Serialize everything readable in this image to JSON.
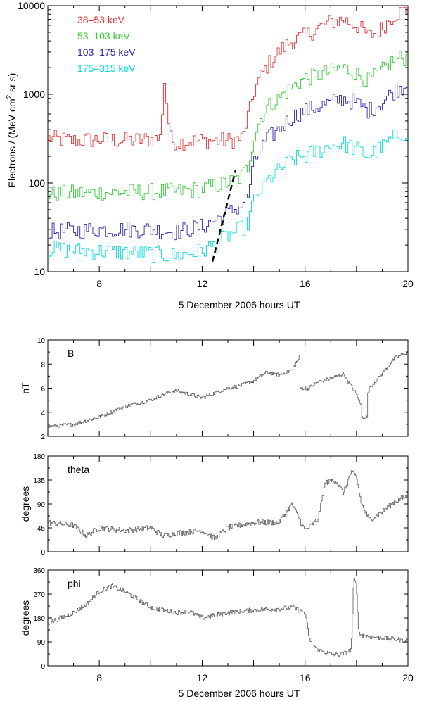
{
  "chart_data": [
    {
      "type": "line",
      "step": true,
      "scale": "log",
      "xlabel": "5 December 2006    hours UT",
      "ylabel_main": "Electrons / (MeV cm",
      "ylabel_sup": "2",
      "ylabel_tail": " sr s)",
      "xlim": [
        6,
        20
      ],
      "ylim": [
        10,
        10000
      ],
      "xticks": [
        8,
        12,
        16,
        20
      ],
      "xtick_labels": [
        "8",
        "12",
        "16",
        "20"
      ],
      "yticks": [
        10,
        100,
        1000,
        10000
      ],
      "ytick_labels": [
        "10",
        "100",
        "1000",
        "10000"
      ],
      "annotation": "dashed velocity-dispersion line from (12.4 h, 13) to (13.3 h, 140)",
      "dash_line": [
        [
          12.4,
          13
        ],
        [
          13.3,
          140
        ]
      ],
      "series": [
        {
          "name": "38–53 keV",
          "color": "#e83030",
          "anchors": [
            [
              6,
              320
            ],
            [
              7,
              300
            ],
            [
              8,
              310
            ],
            [
              9,
              300
            ],
            [
              10,
              310
            ],
            [
              10.4,
              320
            ],
            [
              10.5,
              900
            ],
            [
              10.55,
              1500
            ],
            [
              10.65,
              600
            ],
            [
              10.8,
              300
            ],
            [
              11,
              290
            ],
            [
              12,
              300
            ],
            [
              13,
              300
            ],
            [
              13.6,
              320
            ],
            [
              13.9,
              700
            ],
            [
              14,
              1000
            ],
            [
              14.5,
              2000
            ],
            [
              15,
              3000
            ],
            [
              15.5,
              4000
            ],
            [
              16,
              4500
            ],
            [
              16.5,
              5500
            ],
            [
              17,
              6500
            ],
            [
              17.5,
              7000
            ],
            [
              18,
              6000
            ],
            [
              18.5,
              4500
            ],
            [
              19,
              5500
            ],
            [
              19.5,
              8000
            ],
            [
              20,
              9000
            ]
          ],
          "spike_at": [
            10.5,
            10.6
          ]
        },
        {
          "name": "53–103 keV",
          "color": "#33cc33",
          "anchors": [
            [
              6,
              75
            ],
            [
              8,
              78
            ],
            [
              10,
              80
            ],
            [
              11,
              80
            ],
            [
              12,
              85
            ],
            [
              13,
              100
            ],
            [
              13.5,
              115
            ],
            [
              13.8,
              150
            ],
            [
              14,
              300
            ],
            [
              14.5,
              700
            ],
            [
              15,
              900
            ],
            [
              15.5,
              1200
            ],
            [
              16,
              1500
            ],
            [
              17,
              1800
            ],
            [
              17.5,
              2000
            ],
            [
              18,
              1700
            ],
            [
              18.5,
              1400
            ],
            [
              19,
              1800
            ],
            [
              19.5,
              2500
            ],
            [
              20,
              2600
            ]
          ]
        },
        {
          "name": "103–175 keV",
          "color": "#2828b0",
          "anchors": [
            [
              6,
              28
            ],
            [
              8,
              30
            ],
            [
              10,
              30
            ],
            [
              11,
              28
            ],
            [
              12,
              32
            ],
            [
              12.5,
              38
            ],
            [
              13,
              45
            ],
            [
              13.5,
              55
            ],
            [
              13.8,
              70
            ],
            [
              14,
              150
            ],
            [
              14.5,
              300
            ],
            [
              15,
              400
            ],
            [
              15.5,
              550
            ],
            [
              16,
              650
            ],
            [
              17,
              800
            ],
            [
              17.5,
              900
            ],
            [
              18,
              800
            ],
            [
              18.5,
              650
            ],
            [
              19,
              800
            ],
            [
              19.5,
              1100
            ],
            [
              20,
              1300
            ]
          ]
        },
        {
          "name": "175–315 keV",
          "color": "#00dddd",
          "anchors": [
            [
              6,
              18
            ],
            [
              8,
              17
            ],
            [
              10,
              16
            ],
            [
              11,
              15
            ],
            [
              12,
              17
            ],
            [
              12.5,
              20
            ],
            [
              13,
              25
            ],
            [
              13.5,
              30
            ],
            [
              13.8,
              35
            ],
            [
              14,
              60
            ],
            [
              14.5,
              100
            ],
            [
              15,
              140
            ],
            [
              15.5,
              180
            ],
            [
              16,
              200
            ],
            [
              17,
              260
            ],
            [
              17.5,
              280
            ],
            [
              18,
              240
            ],
            [
              18.5,
              200
            ],
            [
              19,
              250
            ],
            [
              19.5,
              330
            ],
            [
              20,
              380
            ]
          ]
        }
      ]
    },
    {
      "type": "line",
      "label": "B",
      "ylabel": "nT",
      "xlim": [
        6,
        20
      ],
      "ylim": [
        2,
        10
      ],
      "yticks": [
        2,
        4,
        6,
        8,
        10
      ],
      "ytick_labels": [
        "2",
        "4",
        "6",
        "8",
        "10"
      ],
      "anchors": [
        [
          6,
          2.8
        ],
        [
          7,
          3.0
        ],
        [
          8,
          3.6
        ],
        [
          9,
          4.5
        ],
        [
          10,
          5.0
        ],
        [
          10.5,
          5.5
        ],
        [
          11,
          5.8
        ],
        [
          12,
          5.2
        ],
        [
          12.5,
          5.6
        ],
        [
          13,
          6.0
        ],
        [
          13.5,
          6.2
        ],
        [
          14,
          6.6
        ],
        [
          14.5,
          7.3
        ],
        [
          15,
          7.1
        ],
        [
          15.5,
          7.5
        ],
        [
          15.8,
          8.6
        ],
        [
          16,
          5.8
        ],
        [
          16.5,
          6.5
        ],
        [
          17,
          6.8
        ],
        [
          17.5,
          7.2
        ],
        [
          18,
          5.5
        ],
        [
          18.3,
          4.0
        ],
        [
          18.5,
          6.0
        ],
        [
          19,
          7.2
        ],
        [
          19.5,
          8.5
        ],
        [
          20,
          9.0
        ]
      ],
      "dips": [
        [
          15.9,
          6.0
        ],
        [
          18.3,
          3.6
        ]
      ]
    },
    {
      "type": "line",
      "label": "theta",
      "ylabel": "degrees",
      "xlim": [
        6,
        20
      ],
      "ylim": [
        0,
        180
      ],
      "yticks": [
        0,
        45,
        90,
        135,
        180
      ],
      "ytick_labels": [
        "0",
        "45",
        "90",
        "135",
        "180"
      ],
      "anchors": [
        [
          6,
          55
        ],
        [
          7,
          50
        ],
        [
          7.5,
          30
        ],
        [
          8,
          45
        ],
        [
          9,
          40
        ],
        [
          10,
          45
        ],
        [
          10.5,
          30
        ],
        [
          11,
          35
        ],
        [
          12,
          40
        ],
        [
          12.5,
          25
        ],
        [
          13,
          45
        ],
        [
          14,
          55
        ],
        [
          15,
          55
        ],
        [
          15.5,
          90
        ],
        [
          15.8,
          60
        ],
        [
          16,
          40
        ],
        [
          16.5,
          60
        ],
        [
          16.8,
          130
        ],
        [
          17.2,
          135
        ],
        [
          17.5,
          110
        ],
        [
          17.8,
          150
        ],
        [
          18,
          140
        ],
        [
          18.2,
          90
        ],
        [
          18.5,
          60
        ],
        [
          19,
          75
        ],
        [
          19.5,
          95
        ],
        [
          20,
          105
        ]
      ]
    },
    {
      "type": "line",
      "label": "phi",
      "ylabel": "degrees",
      "xlabel": "5 December 2006    hours UT",
      "xlim": [
        6,
        20
      ],
      "ylim": [
        0,
        360
      ],
      "xticks": [
        8,
        12,
        16,
        20
      ],
      "xtick_labels": [
        "8",
        "12",
        "16",
        "20"
      ],
      "yticks": [
        0,
        90,
        180,
        270,
        360
      ],
      "ytick_labels": [
        "0",
        "90",
        "180",
        "270",
        "360"
      ],
      "anchors": [
        [
          6,
          160
        ],
        [
          6.5,
          180
        ],
        [
          7,
          200
        ],
        [
          7.5,
          230
        ],
        [
          8,
          280
        ],
        [
          8.5,
          300
        ],
        [
          9,
          280
        ],
        [
          9.5,
          250
        ],
        [
          10,
          220
        ],
        [
          10.5,
          210
        ],
        [
          11,
          200
        ],
        [
          11.5,
          205
        ],
        [
          12,
          180
        ],
        [
          12.5,
          190
        ],
        [
          13,
          200
        ],
        [
          13.5,
          205
        ],
        [
          14,
          210
        ],
        [
          15,
          215
        ],
        [
          15.5,
          220
        ],
        [
          16,
          200
        ],
        [
          16.2,
          90
        ],
        [
          16.5,
          60
        ],
        [
          17,
          45
        ],
        [
          17.3,
          40
        ],
        [
          17.5,
          45
        ],
        [
          17.8,
          60
        ],
        [
          17.9,
          330
        ],
        [
          18,
          300
        ],
        [
          18.1,
          120
        ],
        [
          18.5,
          110
        ],
        [
          19,
          105
        ],
        [
          19.5,
          100
        ],
        [
          20,
          95
        ]
      ]
    }
  ]
}
